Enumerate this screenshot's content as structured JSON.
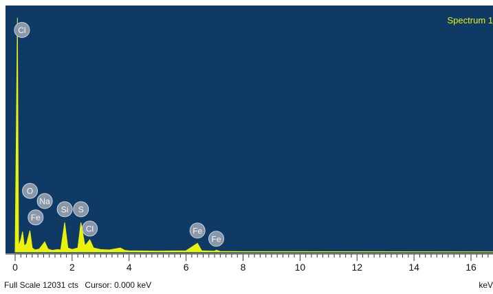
{
  "chart_data": {
    "type": "line",
    "series_name": "Spectrum 1",
    "xlabel": "keV",
    "xlim": [
      0,
      17
    ],
    "x_ticks": [
      "0",
      "2",
      "4",
      "6",
      "8",
      "10",
      "12",
      "14",
      "16"
    ],
    "full_scale_counts": 12031,
    "series": [
      {
        "name": "Spectrum 1",
        "points": [
          [
            0.0,
            0
          ],
          [
            0.08,
            11500
          ],
          [
            0.12,
            300
          ],
          [
            0.2,
            600
          ],
          [
            0.26,
            1000
          ],
          [
            0.32,
            300
          ],
          [
            0.4,
            400
          ],
          [
            0.52,
            1050
          ],
          [
            0.6,
            200
          ],
          [
            0.7,
            100
          ],
          [
            0.85,
            150
          ],
          [
            1.04,
            500
          ],
          [
            1.15,
            150
          ],
          [
            1.3,
            80
          ],
          [
            1.49,
            120
          ],
          [
            1.6,
            100
          ],
          [
            1.74,
            1450
          ],
          [
            1.85,
            200
          ],
          [
            2.0,
            120
          ],
          [
            2.2,
            200
          ],
          [
            2.31,
            1450
          ],
          [
            2.45,
            300
          ],
          [
            2.62,
            600
          ],
          [
            2.75,
            200
          ],
          [
            3.0,
            120
          ],
          [
            3.3,
            100
          ],
          [
            3.69,
            200
          ],
          [
            3.85,
            80
          ],
          [
            4.0,
            60
          ],
          [
            5.0,
            40
          ],
          [
            6.0,
            60
          ],
          [
            6.4,
            430
          ],
          [
            6.55,
            60
          ],
          [
            7.0,
            40
          ],
          [
            7.06,
            90
          ],
          [
            7.2,
            30
          ],
          [
            8.0,
            20
          ],
          [
            17.0,
            10
          ]
        ],
        "color": "#eaf20b"
      }
    ],
    "peak_labels": [
      {
        "text": "Cl",
        "x": 0.24,
        "y": 10900
      },
      {
        "text": "O",
        "x": 0.52,
        "y": 3000
      },
      {
        "text": "Na",
        "x": 1.04,
        "y": 2500
      },
      {
        "text": "Fe",
        "x": 0.72,
        "y": 1700
      },
      {
        "text": "Si",
        "x": 1.74,
        "y": 2100
      },
      {
        "text": "S",
        "x": 2.31,
        "y": 2100
      },
      {
        "text": "Cl",
        "x": 2.62,
        "y": 1150
      },
      {
        "text": "Fe",
        "x": 6.4,
        "y": 1050
      },
      {
        "text": "Fe",
        "x": 7.06,
        "y": 650
      }
    ]
  },
  "status": {
    "full_scale": "Full Scale 12031 cts",
    "cursor": "Cursor: 0.000 keV"
  },
  "colors": {
    "panel": "#0f3a66",
    "spectrum": "#eaf20b",
    "label_bubble": "#8a97a8"
  }
}
